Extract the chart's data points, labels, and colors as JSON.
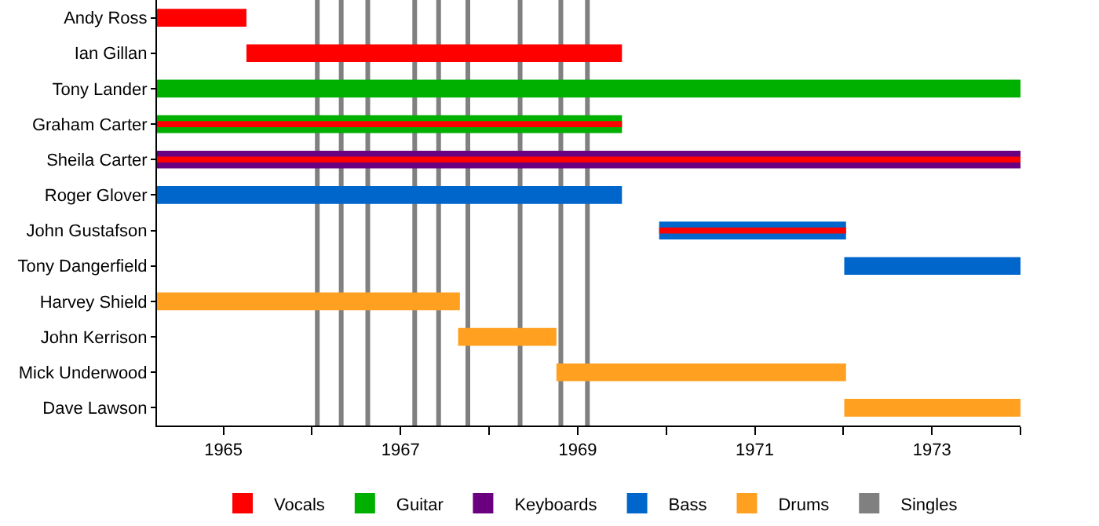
{
  "chart_data": {
    "type": "bar",
    "orientation": "horizontal",
    "categories": [
      "Andy Ross",
      "Ian Gillan",
      "Tony Lander",
      "Graham Carter",
      "Sheila Carter",
      "Roger Glover",
      "John Gustafson",
      "Tony Dangerfield",
      "Harvey Shield",
      "John Kerrison",
      "Mick Underwood",
      "Dave Lawson"
    ],
    "series": [
      {
        "name": "Vocals",
        "color": "#ff0000",
        "base": [
          1964.25,
          1965.26,
          null,
          1964.25,
          1964.25,
          null,
          1969.92,
          null,
          null,
          null,
          null,
          null
        ],
        "values": [
          1.01,
          4.24,
          null,
          5.25,
          9.75,
          null,
          2.11,
          null,
          null,
          null,
          null,
          null
        ]
      },
      {
        "name": "Guitar",
        "color": "#00b000",
        "base": [
          null,
          null,
          1964.25,
          1964.25,
          null,
          null,
          null,
          null,
          null,
          null,
          null,
          null
        ],
        "values": [
          null,
          null,
          9.75,
          5.25,
          null,
          null,
          null,
          null,
          null,
          null,
          null,
          null
        ]
      },
      {
        "name": "Keyboards",
        "color": "#6a0080",
        "base": [
          null,
          null,
          null,
          null,
          1964.25,
          null,
          null,
          null,
          null,
          null,
          null,
          null
        ],
        "values": [
          null,
          null,
          null,
          null,
          9.75,
          null,
          null,
          null,
          null,
          null,
          null,
          null
        ]
      },
      {
        "name": "Bass",
        "color": "#0066cc",
        "base": [
          null,
          null,
          null,
          null,
          null,
          1964.25,
          1969.92,
          1972.01,
          null,
          null,
          null,
          null
        ],
        "values": [
          null,
          null,
          null,
          null,
          null,
          5.25,
          2.11,
          1.99,
          null,
          null,
          null,
          null
        ]
      },
      {
        "name": "Drums",
        "color": "#ffa020",
        "base": [
          null,
          null,
          null,
          null,
          null,
          null,
          null,
          null,
          1964.25,
          1967.65,
          1968.76,
          1972.01
        ],
        "values": [
          null,
          null,
          null,
          null,
          null,
          null,
          null,
          null,
          3.42,
          1.11,
          3.27,
          1.99
        ]
      }
    ],
    "xlim": [
      1964.25,
      1974.0
    ],
    "xticks": [
      1965,
      {
        "value": 1966,
        "label": null
      },
      1967,
      {
        "value": 1968,
        "label": null
      },
      1969,
      {
        "value": 1970,
        "label": null
      },
      1971,
      {
        "value": 1972,
        "label": null
      },
      1973,
      {
        "value": 1974,
        "label": null
      }
    ],
    "ref_lines": [
      {
        "axis": "x",
        "value": 1966.06,
        "label": "Singles",
        "color": "#808080"
      },
      {
        "axis": "x",
        "value": 1966.33,
        "color": "#808080"
      },
      {
        "axis": "x",
        "value": 1966.63,
        "color": "#808080"
      },
      {
        "axis": "x",
        "value": 1967.16,
        "color": "#808080"
      },
      {
        "axis": "x",
        "value": 1967.43,
        "color": "#808080"
      },
      {
        "axis": "x",
        "value": 1967.76,
        "color": "#808080"
      },
      {
        "axis": "x",
        "value": 1968.35,
        "color": "#808080"
      },
      {
        "axis": "x",
        "value": 1968.81,
        "color": "#808080"
      },
      {
        "axis": "x",
        "value": 1969.11,
        "color": "#808080"
      }
    ],
    "grid": false,
    "legend": "bottom"
  }
}
